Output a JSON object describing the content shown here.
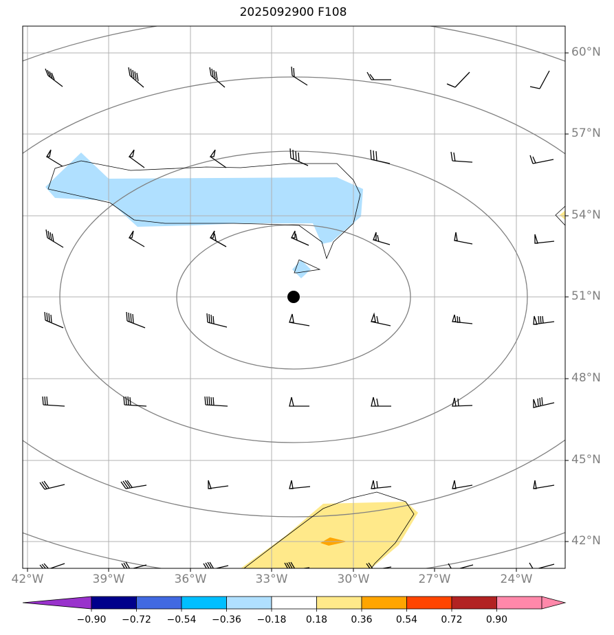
{
  "title": "2025092900 F108",
  "latitude_labels": [
    "60°N",
    "57°N",
    "54°N",
    "51°N",
    "48°N",
    "45°N",
    "42°N"
  ],
  "longitude_labels": [
    "42°W",
    "39°W",
    "36°W",
    "33°W",
    "30°W",
    "27°W",
    "24°W"
  ],
  "colorbar": {
    "tick_labels": [
      "−0.90",
      "−0.72",
      "−0.54",
      "−0.36",
      "−0.18",
      "0.18",
      "0.36",
      "0.54",
      "0.72",
      "0.90"
    ],
    "colors": [
      "#9932cc",
      "#00008b",
      "#4169e1",
      "#00bfff",
      "#b0e0ff",
      "#ffffff",
      "#ffe98a",
      "#ffa500",
      "#ff4500",
      "#b22222",
      "#ff88aa"
    ]
  },
  "colors": {
    "negative_shading": "#b0e0ff",
    "positive_shading": "#ffe98a",
    "strong_positive": "#ffa500",
    "contour": "#808080",
    "grid": "#b0b0b0",
    "coastline": "#000000",
    "marker": "#000000"
  },
  "map_features": {
    "center_marker": "filled black dot near 32°W 51°N",
    "contours": "concentric closed isolines centered near 32°W 51°N",
    "wind_barbs": "regular grid, 7 columns x 7 rows"
  }
}
